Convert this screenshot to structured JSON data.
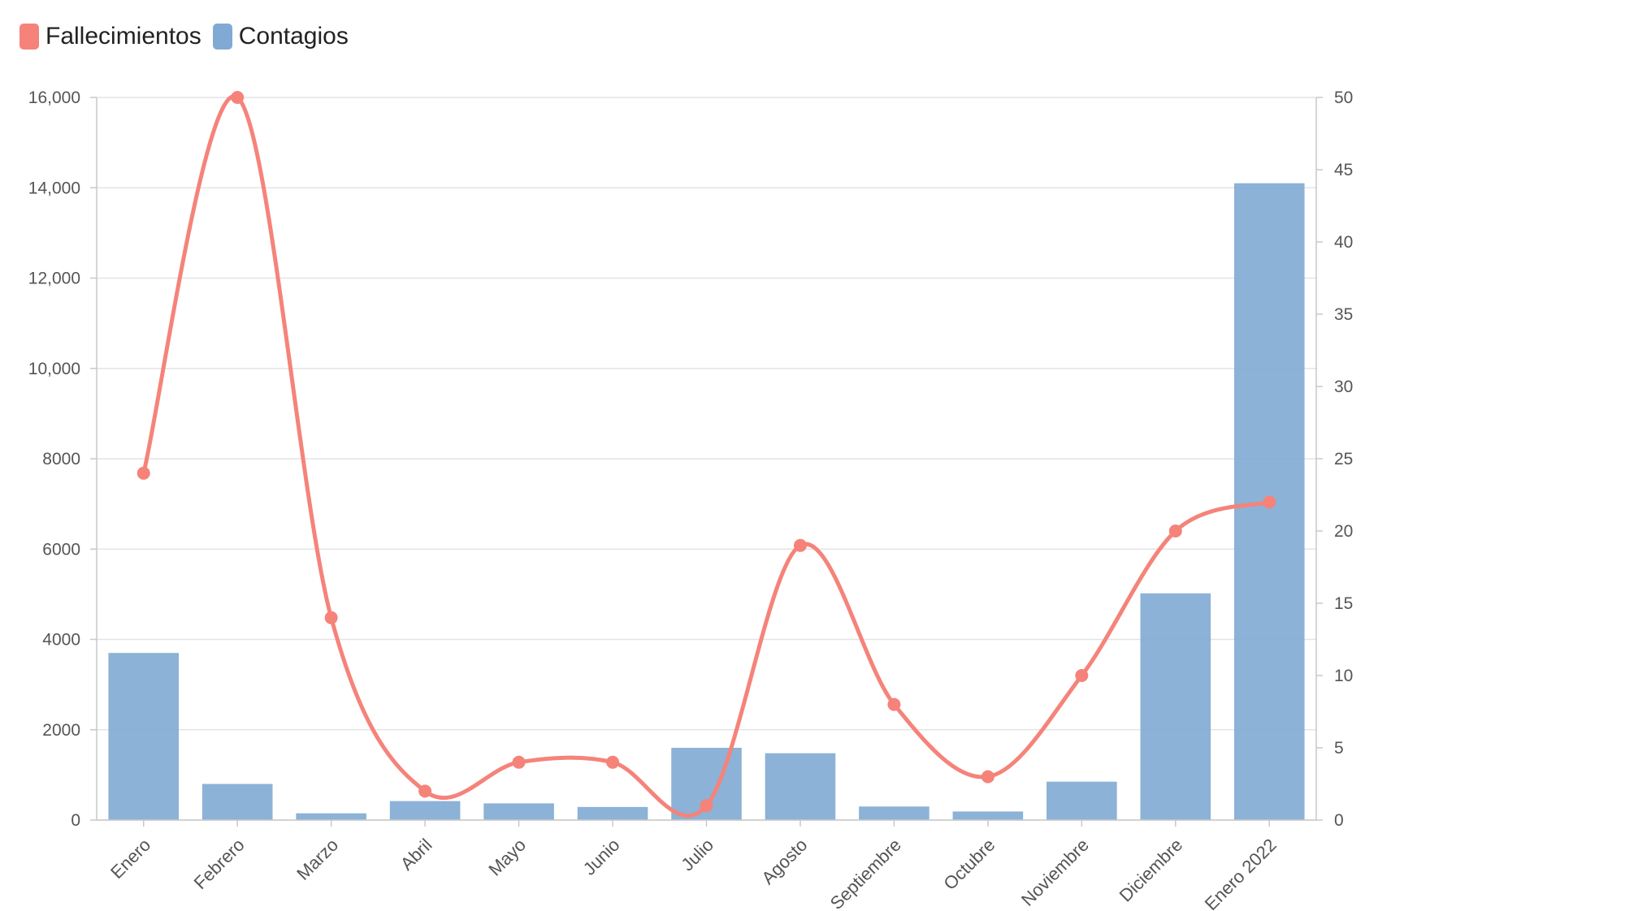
{
  "legend": {
    "deaths_label": "Fallecimientos",
    "cases_label": "Contagios"
  },
  "colors": {
    "deaths": "#f5837a",
    "cases": "#80aad3",
    "grid": "#e4e4e4",
    "axis": "#c8c8c8"
  },
  "chart_data": {
    "type": "bar",
    "categories": [
      "Enero",
      "Febrero",
      "Marzo",
      "Abril",
      "Mayo",
      "Junio",
      "Julio",
      "Agosto",
      "Septiembre",
      "Octubre",
      "Noviembre",
      "Diciembre",
      "Enero 2022"
    ],
    "series": [
      {
        "name": "Contagios",
        "type": "bar",
        "axis": "left",
        "values": [
          3700,
          800,
          150,
          420,
          370,
          290,
          1600,
          1480,
          300,
          190,
          850,
          5020,
          14100
        ]
      },
      {
        "name": "Fallecimientos",
        "type": "line",
        "axis": "right",
        "values": [
          24,
          50,
          14,
          2,
          4,
          4,
          1,
          19,
          8,
          3,
          10,
          20,
          22
        ]
      }
    ],
    "left_axis": {
      "ylim": [
        0,
        16000
      ],
      "ticks": [
        {
          "v": 0,
          "label": "0"
        },
        {
          "v": 2000,
          "label": "2000"
        },
        {
          "v": 4000,
          "label": "4000"
        },
        {
          "v": 6000,
          "label": "6000"
        },
        {
          "v": 8000,
          "label": "8000"
        },
        {
          "v": 10000,
          "label": "10,000"
        },
        {
          "v": 12000,
          "label": "12,000"
        },
        {
          "v": 14000,
          "label": "14,000"
        },
        {
          "v": 16000,
          "label": "16,000"
        }
      ]
    },
    "right_axis": {
      "ylim": [
        0,
        50
      ],
      "ticks": [
        {
          "v": 0,
          "label": "0"
        },
        {
          "v": 5,
          "label": "5"
        },
        {
          "v": 10,
          "label": "10"
        },
        {
          "v": 15,
          "label": "15"
        },
        {
          "v": 20,
          "label": "20"
        },
        {
          "v": 25,
          "label": "25"
        },
        {
          "v": 30,
          "label": "30"
        },
        {
          "v": 35,
          "label": "35"
        },
        {
          "v": 40,
          "label": "40"
        },
        {
          "v": 45,
          "label": "45"
        },
        {
          "v": 50,
          "label": "50"
        }
      ]
    },
    "grid": true,
    "legend_position": "top-left"
  }
}
